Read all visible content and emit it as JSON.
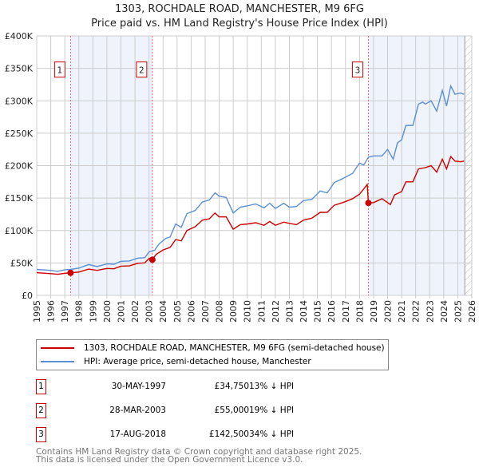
{
  "chart_data": {
    "type": "line",
    "title": "1303, ROCHDALE ROAD, MANCHESTER, M9 6FG",
    "subtitle": "Price paid vs. HM Land Registry's House Price Index (HPI)",
    "xlim": [
      1995,
      2026
    ],
    "ylim": [
      0,
      400000
    ],
    "x_ticks": [
      "1995",
      "1996",
      "1997",
      "1998",
      "1999",
      "2000",
      "2001",
      "2002",
      "2003",
      "2004",
      "2005",
      "2006",
      "2007",
      "2008",
      "2009",
      "2010",
      "2011",
      "2012",
      "2013",
      "2014",
      "2015",
      "2016",
      "2017",
      "2018",
      "2019",
      "2020",
      "2021",
      "2022",
      "2023",
      "2024",
      "2025",
      "2026"
    ],
    "y_ticks": [
      {
        "v": 0,
        "label": "£0"
      },
      {
        "v": 50000,
        "label": "£50K"
      },
      {
        "v": 100000,
        "label": "£100K"
      },
      {
        "v": 150000,
        "label": "£150K"
      },
      {
        "v": 200000,
        "label": "£200K"
      },
      {
        "v": 250000,
        "label": "£250K"
      },
      {
        "v": 300000,
        "label": "£300K"
      },
      {
        "v": 350000,
        "label": "£350K"
      },
      {
        "v": 400000,
        "label": "£400K"
      }
    ],
    "grid": true,
    "shaded_ranges": [
      [
        1997.41,
        2003.24
      ],
      [
        2018.63,
        2025.5
      ]
    ],
    "forecast_from": 2025.5,
    "series": [
      {
        "name": "1303, ROCHDALE ROAD, MANCHESTER, M9 6FG (semi-detached house)",
        "color": "#cc0000",
        "points": [
          [
            1995,
            35000
          ],
          [
            1996,
            33500
          ],
          [
            1996.5,
            32500
          ],
          [
            1997,
            34000
          ],
          [
            1997.41,
            34750
          ],
          [
            1998,
            36000
          ],
          [
            1998.7,
            40500
          ],
          [
            1999.3,
            38500
          ],
          [
            2000,
            41500
          ],
          [
            2000.5,
            41000
          ],
          [
            2001,
            45000
          ],
          [
            2001.6,
            45500
          ],
          [
            2002.2,
            49500
          ],
          [
            2002.7,
            50000
          ],
          [
            2003,
            57000
          ],
          [
            2003.24,
            55000
          ],
          [
            2003.5,
            63000
          ],
          [
            2004,
            70000
          ],
          [
            2004.5,
            74000
          ],
          [
            2004.9,
            86000
          ],
          [
            2005.3,
            84000
          ],
          [
            2005.7,
            100000
          ],
          [
            2006.3,
            106000
          ],
          [
            2006.8,
            116000
          ],
          [
            2007.3,
            118000
          ],
          [
            2007.7,
            127000
          ],
          [
            2008,
            121000
          ],
          [
            2008.5,
            121000
          ],
          [
            2009,
            102000
          ],
          [
            2009.5,
            109000
          ],
          [
            2010,
            110000
          ],
          [
            2010.6,
            112000
          ],
          [
            2011.2,
            108000
          ],
          [
            2011.6,
            114000
          ],
          [
            2012,
            108000
          ],
          [
            2012.6,
            113000
          ],
          [
            2013,
            111000
          ],
          [
            2013.5,
            109000
          ],
          [
            2014,
            116000
          ],
          [
            2014.6,
            119000
          ],
          [
            2015.2,
            128000
          ],
          [
            2015.7,
            128000
          ],
          [
            2016.2,
            139000
          ],
          [
            2016.8,
            143000
          ],
          [
            2017.5,
            149000
          ],
          [
            2018,
            156000
          ],
          [
            2018.3,
            164000
          ],
          [
            2018.55,
            171000
          ],
          [
            2018.63,
            142500
          ],
          [
            2019,
            143000
          ],
          [
            2019.6,
            149000
          ],
          [
            2020.2,
            140000
          ],
          [
            2020.5,
            155000
          ],
          [
            2021,
            160000
          ],
          [
            2021.3,
            175000
          ],
          [
            2021.8,
            175000
          ],
          [
            2022.2,
            195000
          ],
          [
            2022.7,
            197000
          ],
          [
            2023.1,
            200000
          ],
          [
            2023.5,
            190000
          ],
          [
            2023.9,
            210000
          ],
          [
            2024.2,
            195000
          ],
          [
            2024.5,
            214000
          ],
          [
            2024.8,
            207000
          ],
          [
            2025.2,
            206000
          ],
          [
            2025.45,
            207000
          ]
        ]
      },
      {
        "name": "HPI: Average price, semi-detached house, Manchester",
        "color": "#5b8fd4",
        "points": [
          [
            1995,
            40000
          ],
          [
            1996,
            38500
          ],
          [
            1996.5,
            37000
          ],
          [
            1997,
            39500
          ],
          [
            1997.41,
            40000
          ],
          [
            1998,
            42000
          ],
          [
            1998.7,
            47500
          ],
          [
            1999.3,
            44500
          ],
          [
            2000,
            48500
          ],
          [
            2000.5,
            48000
          ],
          [
            2001,
            52500
          ],
          [
            2001.6,
            53000
          ],
          [
            2002.2,
            57500
          ],
          [
            2002.7,
            58000
          ],
          [
            2003,
            67000
          ],
          [
            2003.4,
            69500
          ],
          [
            2003.7,
            79000
          ],
          [
            2004.2,
            88000
          ],
          [
            2004.5,
            90000
          ],
          [
            2004.9,
            110000
          ],
          [
            2005.3,
            105000
          ],
          [
            2005.7,
            126000
          ],
          [
            2006.3,
            131000
          ],
          [
            2006.8,
            144000
          ],
          [
            2007.3,
            147000
          ],
          [
            2007.7,
            158000
          ],
          [
            2008,
            153000
          ],
          [
            2008.5,
            151000
          ],
          [
            2009,
            127000
          ],
          [
            2009.5,
            136000
          ],
          [
            2010,
            138000
          ],
          [
            2010.6,
            141000
          ],
          [
            2011.2,
            135000
          ],
          [
            2011.6,
            142000
          ],
          [
            2012,
            134000
          ],
          [
            2012.6,
            142000
          ],
          [
            2013,
            136000
          ],
          [
            2013.5,
            137000
          ],
          [
            2014,
            146000
          ],
          [
            2014.6,
            148000
          ],
          [
            2015.2,
            161000
          ],
          [
            2015.7,
            158000
          ],
          [
            2016.2,
            174000
          ],
          [
            2016.8,
            180000
          ],
          [
            2017.5,
            188000
          ],
          [
            2018,
            204000
          ],
          [
            2018.3,
            201000
          ],
          [
            2018.63,
            213000
          ],
          [
            2019,
            215000
          ],
          [
            2019.6,
            215000
          ],
          [
            2020,
            225000
          ],
          [
            2020.4,
            210000
          ],
          [
            2020.7,
            235000
          ],
          [
            2021,
            240000
          ],
          [
            2021.3,
            262000
          ],
          [
            2021.8,
            262000
          ],
          [
            2022.2,
            295000
          ],
          [
            2022.5,
            298000
          ],
          [
            2022.7,
            295000
          ],
          [
            2023.1,
            300000
          ],
          [
            2023.5,
            284000
          ],
          [
            2023.9,
            316000
          ],
          [
            2024.2,
            292000
          ],
          [
            2024.5,
            323000
          ],
          [
            2024.8,
            310000
          ],
          [
            2025.2,
            312000
          ],
          [
            2025.45,
            310000
          ]
        ]
      }
    ],
    "sales": [
      {
        "id": "1",
        "x": 1997.41,
        "price": 34750,
        "date": "30-MAY-1997",
        "price_label": "£34,750",
        "hpi": "13% ↓ HPI"
      },
      {
        "id": "2",
        "x": 2003.24,
        "price": 55000,
        "date": "28-MAR-2003",
        "price_label": "£55,000",
        "hpi": "19% ↓ HPI"
      },
      {
        "id": "3",
        "x": 2018.63,
        "price": 142500,
        "date": "17-AUG-2018",
        "price_label": "£142,500",
        "hpi": "34% ↓ HPI"
      }
    ],
    "legend_position": "below"
  },
  "footer": {
    "line1": "Contains HM Land Registry data © Crown copyright and database right 2025.",
    "line2": "This data is licensed under the Open Government Licence v3.0."
  }
}
